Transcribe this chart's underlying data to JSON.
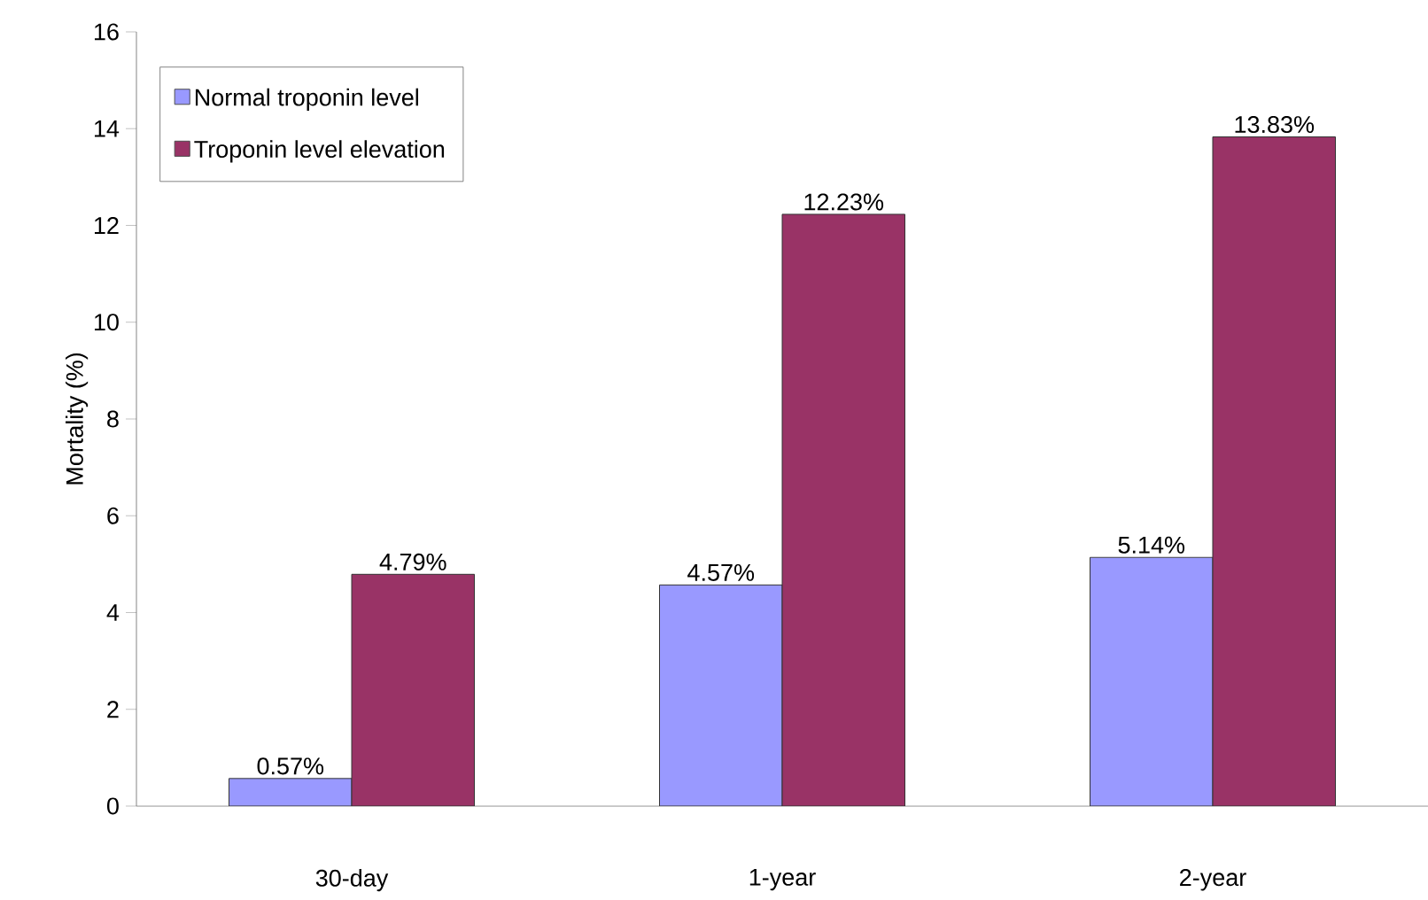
{
  "chart_data": {
    "type": "bar",
    "ylabel": "Mortality (%)",
    "categories": [
      "30-day",
      "1-year",
      "2-year"
    ],
    "series": [
      {
        "name": "Normal troponin level",
        "color": "#9999ff",
        "values": [
          0.57,
          4.57,
          5.14
        ],
        "value_labels": [
          "0.57%",
          "4.57%",
          "5.14%"
        ]
      },
      {
        "name": "Troponin level elevation",
        "color": "#993366",
        "values": [
          4.79,
          12.23,
          13.83
        ],
        "value_labels": [
          "4.79%",
          "12.23%",
          "13.83%"
        ]
      }
    ],
    "ylim": [
      0,
      16
    ],
    "yticks": [
      0,
      2,
      4,
      6,
      8,
      10,
      12,
      14,
      16
    ],
    "grid": false,
    "legend": "top left"
  }
}
